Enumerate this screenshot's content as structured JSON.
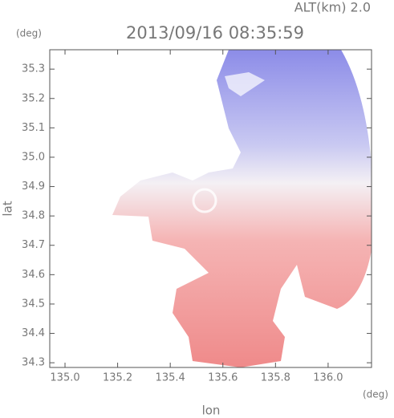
{
  "chart_data": {
    "type": "radar-map",
    "title": "2013/09/16 08:35:59",
    "subtitle": "ALT(km) 2.0",
    "x_label": "lon",
    "y_label": "lat",
    "x_unit": "(deg)",
    "y_unit": "(deg)",
    "xlim": [
      134.942,
      136.165
    ],
    "ylim": [
      34.284,
      35.366
    ],
    "xticks": [
      {
        "value": 135,
        "label": "135.0"
      },
      135.2,
      135.4,
      135.6,
      135.8,
      {
        "value": 136,
        "label": "136.0"
      }
    ],
    "yticks": [
      34.3,
      34.4,
      34.5,
      34.6,
      34.7,
      34.8,
      34.9,
      {
        "value": 35,
        "label": "35.0"
      },
      35.1,
      35.2,
      35.3
    ]
  }
}
